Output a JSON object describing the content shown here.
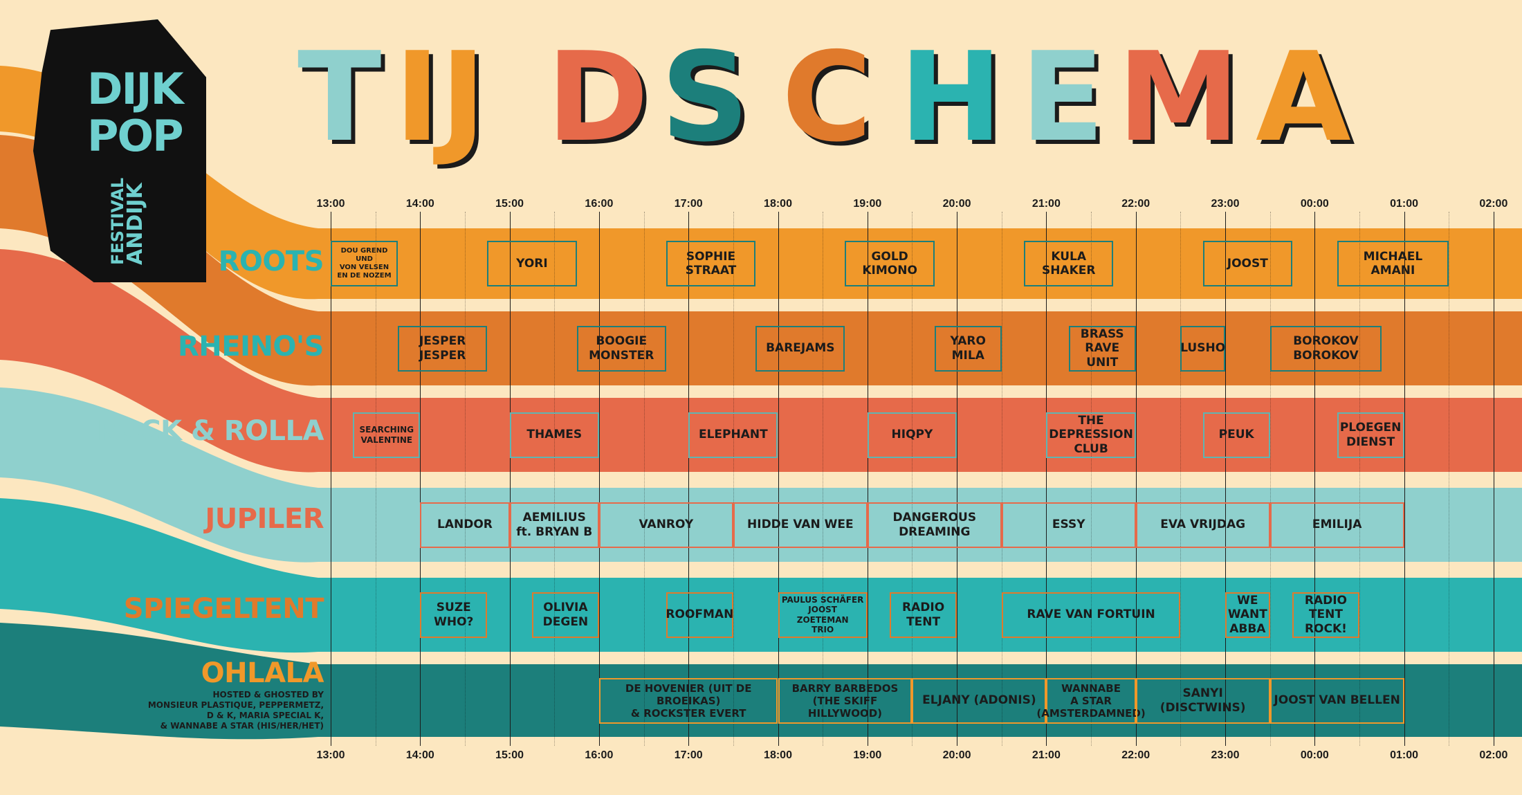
{
  "colors": {
    "background": "#fce7c0",
    "roots": "#f0982a",
    "rheinos": "#e07a2c",
    "rock_rolla": "#e66a4a",
    "jupiler": "#8fd0cd",
    "spiegeltent": "#2bb3b0",
    "ohlala": "#1c7f7b",
    "ink": "#1b1b1b"
  },
  "logo": {
    "brand_line1": "DIJK",
    "brand_line2": "POP",
    "sub1": "FESTIVAL",
    "sub2": "ANDIJK"
  },
  "title": {
    "letters": [
      {
        "char": "T",
        "color": "#8fd0cd"
      },
      {
        "char": "IJ",
        "color": "#f0982a"
      },
      {
        "char": "D",
        "color": "#e66a4a"
      },
      {
        "char": "S",
        "color": "#1c7f7b"
      },
      {
        "char": "C",
        "color": "#e07a2c"
      },
      {
        "char": "H",
        "color": "#2bb3b0"
      },
      {
        "char": "E",
        "color": "#8fd0cd"
      },
      {
        "char": "M",
        "color": "#e66a4a"
      },
      {
        "char": "A",
        "color": "#f0982a"
      }
    ]
  },
  "times": [
    "13:00",
    "14:00",
    "15:00",
    "16:00",
    "17:00",
    "18:00",
    "19:00",
    "20:00",
    "21:00",
    "22:00",
    "23:00",
    "00:00",
    "01:00",
    "02:00"
  ],
  "stages": [
    {
      "name": "ROOTS",
      "key": "roots",
      "label_color": "#2bb3b0",
      "box_border": "#1c7f7b",
      "acts": [
        {
          "name": "DOU GREND\nUND\nVON VELSEN\nEN DE NOZEM",
          "start": "13:00",
          "end": "13:45",
          "size": "xs"
        },
        {
          "name": "YORI",
          "start": "14:45",
          "end": "15:45"
        },
        {
          "name": "SOPHIE\nSTRAAT",
          "start": "16:45",
          "end": "17:45"
        },
        {
          "name": "GOLD\nKIMONO",
          "start": "18:45",
          "end": "19:45"
        },
        {
          "name": "KULA\nSHAKER",
          "start": "20:45",
          "end": "21:45"
        },
        {
          "name": "JOOST",
          "start": "22:45",
          "end": "23:45"
        },
        {
          "name": "MICHAEL\nAMANI",
          "start": "00:15",
          "end": "01:30"
        }
      ]
    },
    {
      "name": "RHEINO'S",
      "key": "rheinos",
      "label_color": "#2bb3b0",
      "box_border": "#1c7f7b",
      "acts": [
        {
          "name": "JESPER\nJESPER",
          "start": "13:45",
          "end": "14:45"
        },
        {
          "name": "BOOGIE\nMONSTER",
          "start": "15:45",
          "end": "16:45"
        },
        {
          "name": "BAREJAMS",
          "start": "17:45",
          "end": "18:45"
        },
        {
          "name": "YARO\nMILA",
          "start": "19:45",
          "end": "20:30"
        },
        {
          "name": "BRASS\nRAVE\nUNIT",
          "start": "21:15",
          "end": "22:00"
        },
        {
          "name": "LUSHO",
          "start": "22:30",
          "end": "23:00"
        },
        {
          "name": "BOROKOV\nBOROKOV",
          "start": "23:30",
          "end": "00:45"
        }
      ]
    },
    {
      "name": "ROCK & ROLLA",
      "key": "rock_rolla",
      "label_color": "#8fd0cd",
      "box_border": "#5fb5b2",
      "acts": [
        {
          "name": "SEARCHING\nVALENTINE",
          "start": "13:15",
          "end": "14:00",
          "size": "sm"
        },
        {
          "name": "THAMES",
          "start": "15:00",
          "end": "16:00"
        },
        {
          "name": "ELEPHANT",
          "start": "17:00",
          "end": "18:00"
        },
        {
          "name": "HIQPY",
          "start": "19:00",
          "end": "20:00"
        },
        {
          "name": "THE\nDEPRESSION\nCLUB",
          "start": "21:00",
          "end": "22:00"
        },
        {
          "name": "PEUK",
          "start": "22:45",
          "end": "23:30"
        },
        {
          "name": "PLOEGEN\nDIENST",
          "start": "00:15",
          "end": "01:00"
        }
      ]
    },
    {
      "name": "JUPILER",
      "key": "jupiler",
      "label_color": "#e66a4a",
      "box_border": "#e66a4a",
      "acts": [
        {
          "name": "LANDOR",
          "start": "14:00",
          "end": "15:00"
        },
        {
          "name": "AEMILIUS\nft. BRYAN B",
          "start": "15:00",
          "end": "16:00"
        },
        {
          "name": "VANROY",
          "start": "16:00",
          "end": "17:30"
        },
        {
          "name": "HIDDE VAN WEE",
          "start": "17:30",
          "end": "19:00"
        },
        {
          "name": "DANGEROUS\nDREAMING",
          "start": "19:00",
          "end": "20:30"
        },
        {
          "name": "ESSY",
          "start": "20:30",
          "end": "22:00"
        },
        {
          "name": "EVA VRIJDAG",
          "start": "22:00",
          "end": "23:30"
        },
        {
          "name": "EMILIJA",
          "start": "23:30",
          "end": "01:00"
        }
      ]
    },
    {
      "name": "SPIEGELTENT",
      "key": "spiegeltent",
      "label_color": "#e07a2c",
      "box_border": "#e07a2c",
      "acts": [
        {
          "name": "SUZE\nWHO?",
          "start": "14:00",
          "end": "14:45"
        },
        {
          "name": "OLIVIA\nDEGEN",
          "start": "15:15",
          "end": "16:00"
        },
        {
          "name": "ROOFMAN",
          "start": "16:45",
          "end": "17:30"
        },
        {
          "name": "PAULUS SCHÄFER\nJOOST ZOETEMAN\nTRIO",
          "start": "18:00",
          "end": "19:00",
          "size": "sm"
        },
        {
          "name": "RADIO\nTENT",
          "start": "19:15",
          "end": "20:00"
        },
        {
          "name": "RAVE VAN FORTUIN",
          "start": "20:30",
          "end": "22:30"
        },
        {
          "name": "WE\nWANT\nABBA",
          "start": "23:00",
          "end": "23:30"
        },
        {
          "name": "RADIO\nTENT\nROCK!",
          "start": "23:45",
          "end": "00:30"
        }
      ]
    },
    {
      "name": "OHLALA",
      "key": "ohlala",
      "label_color": "#f0982a",
      "box_border": "#f0982a",
      "host_note": "HOSTED & GHOSTED BY\nMONSIEUR PLASTIQUE, PEPPERMETZ,\nD & K, MARIA SPECIAL K,\n& WANNABE A STAR (HIS/HER/HET)",
      "acts": [
        {
          "name": "DE HOVENIER (UIT DE BROEIKAS)\n& ROCKSTER EVERT",
          "start": "16:00",
          "end": "18:00",
          "size": "md"
        },
        {
          "name": "BARRY BARBEDOS\n(THE SKIFF HILLYWOOD)",
          "start": "18:00",
          "end": "19:30",
          "size": "md"
        },
        {
          "name": "ELJANY (ADONIS)",
          "start": "19:30",
          "end": "21:00"
        },
        {
          "name": "WANNABE\nA STAR\n(AMSTERDAMNED)",
          "start": "21:00",
          "end": "22:00",
          "size": "md"
        },
        {
          "name": "SANYI\n(DISCTWINS)",
          "start": "22:00",
          "end": "23:30"
        },
        {
          "name": "JOOST VAN BELLEN",
          "start": "23:30",
          "end": "01:00"
        }
      ]
    }
  ]
}
